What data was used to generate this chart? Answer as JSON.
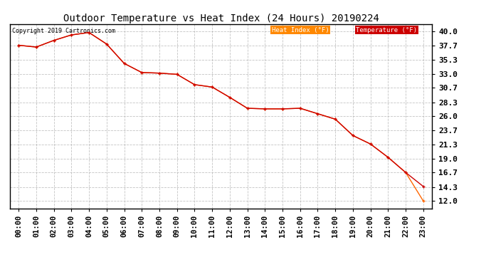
{
  "title": "Outdoor Temperature vs Heat Index (24 Hours) 20190224",
  "copyright": "Copyright 2019 Cartronics.com",
  "legend_heat_index": "Heat Index (°F)",
  "legend_temperature": "Temperature (°F)",
  "x_labels": [
    "00:00",
    "01:00",
    "02:00",
    "03:00",
    "04:00",
    "05:00",
    "06:00",
    "07:00",
    "08:00",
    "09:00",
    "10:00",
    "11:00",
    "12:00",
    "13:00",
    "14:00",
    "15:00",
    "16:00",
    "17:00",
    "18:00",
    "19:00",
    "20:00",
    "21:00",
    "22:00",
    "23:00"
  ],
  "y_ticks": [
    12.0,
    14.3,
    16.7,
    19.0,
    21.3,
    23.7,
    26.0,
    28.3,
    30.7,
    33.0,
    35.3,
    37.7,
    40.0
  ],
  "y_min": 10.8,
  "y_max": 41.2,
  "temperature_values": [
    37.7,
    37.4,
    38.5,
    39.4,
    39.8,
    37.9,
    34.7,
    33.2,
    33.1,
    32.9,
    31.2,
    30.8,
    29.1,
    27.3,
    27.2,
    27.2,
    27.3,
    26.4,
    25.5,
    22.8,
    21.4,
    19.2,
    16.7,
    14.4
  ],
  "heat_index_values": [
    37.7,
    37.4,
    38.5,
    39.4,
    39.8,
    37.9,
    34.7,
    33.2,
    33.1,
    32.9,
    31.2,
    30.8,
    29.1,
    27.3,
    27.2,
    27.2,
    27.3,
    26.4,
    25.5,
    22.8,
    21.4,
    19.2,
    16.7,
    12.0
  ],
  "temperature_color": "#cc0000",
  "heat_index_color": "#ff6600",
  "heat_index_legend_bg": "#ff8800",
  "temperature_legend_bg": "#cc0000",
  "background_color": "#ffffff",
  "plot_bg_color": "#ffffff",
  "grid_color": "#aaaaaa",
  "title_fontsize": 10,
  "tick_fontsize": 7.5
}
